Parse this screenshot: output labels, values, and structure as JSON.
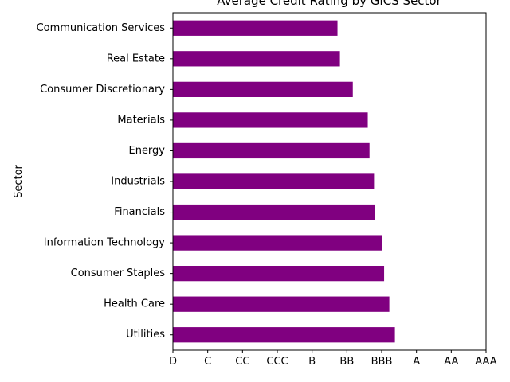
{
  "chart_data": {
    "type": "bar",
    "orientation": "horizontal",
    "title": "Average Credit Rating by GICS Sector",
    "xlabel": "",
    "ylabel": "Sector",
    "bar_color": "#800080",
    "x_ticks": [
      "D",
      "C",
      "CC",
      "CCC",
      "B",
      "BB",
      "BBB",
      "A",
      "AA",
      "AAA"
    ],
    "x_scale_note": "rating index 0 (D) to 9 (AAA)",
    "xlim": [
      0,
      9
    ],
    "categories": [
      "Utilities",
      "Health Care",
      "Consumer Staples",
      "Information Technology",
      "Financials",
      "Industrials",
      "Energy",
      "Materials",
      "Consumer Discretionary",
      "Real Estate",
      "Communication Services"
    ],
    "values": [
      6.38,
      6.22,
      6.07,
      6.0,
      5.8,
      5.78,
      5.65,
      5.6,
      5.17,
      4.8,
      4.73
    ],
    "grid": false,
    "legend": "none"
  }
}
